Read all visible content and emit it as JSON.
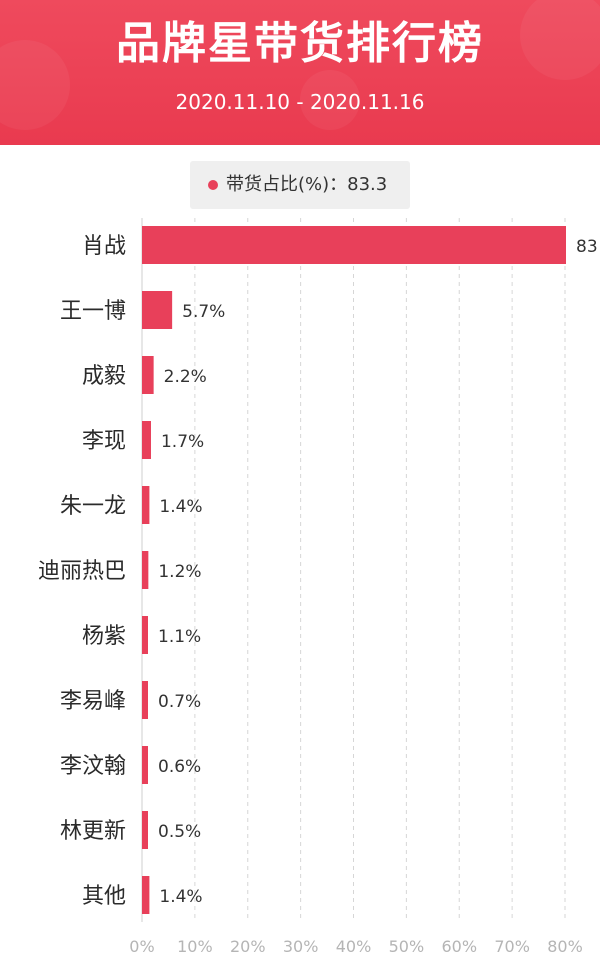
{
  "header": {
    "title": "品牌星带货排行榜",
    "date_range": "2020.11.10 - 2020.11.16"
  },
  "legend": {
    "label": "带货占比(%)：83.3"
  },
  "colors": {
    "header": "#ee4458",
    "bar": "#e8405a",
    "legend_bg": "#efefef",
    "grid": "#d6d6d6"
  },
  "chart_data": {
    "type": "bar",
    "orientation": "horizontal",
    "title": "",
    "xlabel": "",
    "ylabel": "",
    "xlim": [
      0,
      80
    ],
    "grid": true,
    "legend_placement": "top-center",
    "categories": [
      "肖战",
      "王一博",
      "成毅",
      "李现",
      "朱一龙",
      "迪丽热巴",
      "杨紫",
      "李易峰",
      "李汶翰",
      "林更新",
      "其他"
    ],
    "values": [
      83.3,
      5.7,
      2.2,
      1.7,
      1.4,
      1.2,
      1.1,
      0.7,
      0.6,
      0.5,
      1.4
    ],
    "value_labels": [
      "83",
      "5.7%",
      "2.2%",
      "1.7%",
      "1.4%",
      "1.2%",
      "1.1%",
      "0.7%",
      "0.6%",
      "0.5%",
      "1.4%"
    ],
    "x_ticks": [
      0,
      10,
      20,
      30,
      40,
      50,
      60,
      70,
      80
    ],
    "x_tick_labels": [
      "0%",
      "10%",
      "20%",
      "30%",
      "40%",
      "50%",
      "60%",
      "70%",
      "80%"
    ]
  }
}
